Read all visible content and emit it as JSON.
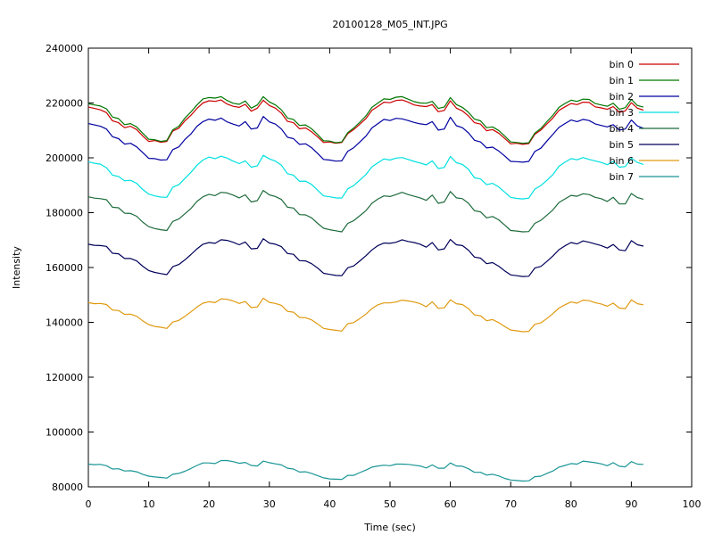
{
  "chart_data": {
    "type": "line",
    "title": "20100128_M05_INT.JPG",
    "xlabel": "Time (sec)",
    "ylabel": "Intensity",
    "xlim": [
      0,
      100
    ],
    "ylim": [
      80000,
      240000
    ],
    "xticks": [
      0,
      10,
      20,
      30,
      40,
      50,
      60,
      70,
      80,
      90,
      100
    ],
    "yticks": [
      80000,
      100000,
      120000,
      140000,
      160000,
      180000,
      200000,
      220000,
      240000
    ],
    "legend_position": "top-right",
    "grid": false,
    "x": [
      0,
      1,
      2,
      3,
      4,
      5,
      6,
      7,
      8,
      9,
      10,
      11,
      12,
      13,
      14,
      15,
      16,
      17,
      18,
      19,
      20,
      21,
      22,
      23,
      24,
      25,
      26,
      27,
      28,
      29,
      30,
      31,
      32,
      33,
      34,
      35,
      36,
      37,
      38,
      39,
      40,
      41,
      42,
      43,
      44,
      45,
      46,
      47,
      48,
      49,
      50,
      51,
      52,
      53,
      54,
      55,
      56,
      57,
      58,
      59,
      60,
      61,
      62,
      63,
      64,
      65,
      66,
      67,
      68,
      69,
      70,
      71,
      72,
      73,
      74,
      75,
      76,
      77,
      78,
      79,
      80,
      81,
      82,
      83,
      84,
      85,
      86,
      87,
      88,
      89,
      90,
      91,
      92
    ],
    "series": [
      {
        "name": "bin 0",
        "color": "#cc0000",
        "values": [
          218500,
          218000,
          217500,
          216500,
          213500,
          212800,
          211000,
          211500,
          210300,
          208000,
          206000,
          206300,
          205700,
          206000,
          209800,
          210800,
          213500,
          215500,
          218000,
          220000,
          220800,
          220600,
          221100,
          219600,
          218800,
          218400,
          219500,
          217000,
          218100,
          221000,
          219100,
          218100,
          216300,
          213300,
          212800,
          210600,
          210900,
          209500,
          207600,
          205600,
          205800,
          205300,
          205600,
          208800,
          210300,
          212300,
          214300,
          217300,
          218800,
          220300,
          220100,
          220900,
          221100,
          220300,
          219300,
          218900,
          218700,
          219400,
          216800,
          217300,
          220800,
          218100,
          217100,
          215300,
          212800,
          212300,
          209900,
          210300,
          209000,
          207100,
          205100,
          205300,
          204900,
          205200,
          208600,
          210100,
          212400,
          214500,
          217300,
          218600,
          219800,
          219400,
          220300,
          220200,
          218600,
          218200,
          217700,
          218700,
          216600,
          217100,
          220100,
          218100,
          217400
        ]
      },
      {
        "name": "bin 1",
        "color": "#007700",
        "values": [
          219700,
          219300,
          218900,
          217900,
          214900,
          214300,
          212100,
          212500,
          211300,
          209000,
          206800,
          206600,
          206000,
          206300,
          210200,
          211500,
          214500,
          216700,
          219300,
          221500,
          222000,
          221800,
          222300,
          220900,
          219900,
          219500,
          220700,
          218100,
          219300,
          222300,
          220400,
          219300,
          217500,
          214500,
          214000,
          211800,
          212000,
          210600,
          208500,
          206200,
          206100,
          205500,
          205800,
          209200,
          210900,
          213000,
          215300,
          218400,
          220000,
          221500,
          221300,
          222100,
          222300,
          221400,
          220500,
          220000,
          219900,
          220600,
          218000,
          218500,
          222000,
          219400,
          218400,
          216600,
          214100,
          213500,
          211000,
          211300,
          210000,
          208000,
          205800,
          205600,
          205300,
          205500,
          209000,
          210700,
          213200,
          215500,
          218400,
          219800,
          221000,
          220600,
          221400,
          221300,
          219800,
          219300,
          218800,
          219900,
          217700,
          218300,
          221300,
          219100,
          218500
        ]
      },
      {
        "name": "bin 2",
        "color": "#0000a0",
        "values": [
          212500,
          212000,
          211500,
          210500,
          207700,
          207000,
          205000,
          205300,
          204000,
          202000,
          199800,
          199700,
          199200,
          199300,
          203000,
          204000,
          206700,
          208700,
          211500,
          213200,
          214100,
          213700,
          214500,
          213100,
          212300,
          211600,
          213200,
          210500,
          210900,
          215100,
          213100,
          212300,
          210500,
          207500,
          207000,
          204900,
          205100,
          203700,
          201600,
          199400,
          199200,
          198800,
          198900,
          202400,
          203700,
          205800,
          207900,
          210900,
          212500,
          214000,
          213600,
          214400,
          214200,
          213600,
          212900,
          212400,
          212100,
          213200,
          210100,
          210500,
          214800,
          211700,
          211000,
          209100,
          206400,
          205800,
          203600,
          203900,
          202500,
          200700,
          198700,
          198600,
          198400,
          198700,
          202300,
          203500,
          206100,
          208600,
          211100,
          212500,
          213800,
          213200,
          214000,
          213600,
          212400,
          211800,
          211300,
          212100,
          210100,
          210500,
          213800,
          211600,
          210800
        ]
      },
      {
        "name": "bin 3",
        "color": "#00e0e0",
        "values": [
          198500,
          198000,
          197700,
          196400,
          193700,
          193200,
          191600,
          191800,
          190700,
          188500,
          186800,
          186100,
          185700,
          185600,
          189300,
          190200,
          192500,
          194700,
          197300,
          199200,
          200300,
          199700,
          200600,
          199900,
          198800,
          197900,
          198900,
          196600,
          197100,
          200900,
          199600,
          198800,
          197300,
          194200,
          193700,
          191400,
          191500,
          190300,
          188200,
          186100,
          185800,
          185400,
          185300,
          188700,
          189900,
          191900,
          193900,
          196700,
          198200,
          199600,
          199200,
          199900,
          200100,
          199400,
          198700,
          198100,
          197400,
          198900,
          196100,
          196500,
          200500,
          198200,
          197600,
          195800,
          192700,
          192300,
          190200,
          190700,
          189400,
          187500,
          185600,
          185200,
          185000,
          185300,
          188600,
          189900,
          191800,
          193900,
          196900,
          198400,
          199700,
          199300,
          200100,
          199400,
          198900,
          198300,
          197500,
          198700,
          196600,
          196800,
          199900,
          198300,
          197600
        ]
      },
      {
        "name": "bin 4",
        "color": "#1e6b3c",
        "values": [
          185800,
          185300,
          185100,
          184700,
          182000,
          181800,
          179800,
          179700,
          178700,
          176600,
          174900,
          174200,
          173800,
          173500,
          176800,
          177700,
          179600,
          181500,
          184100,
          185800,
          186700,
          186200,
          187400,
          187200,
          186400,
          185400,
          186500,
          183900,
          184400,
          188100,
          186500,
          185900,
          184800,
          182000,
          181700,
          179300,
          179200,
          178100,
          176100,
          174300,
          173800,
          173400,
          173000,
          176100,
          177100,
          178900,
          180700,
          183400,
          185000,
          186100,
          185900,
          186600,
          187400,
          186600,
          186000,
          185400,
          184500,
          186400,
          183400,
          183900,
          187700,
          185400,
          185100,
          183400,
          180700,
          180300,
          178100,
          178600,
          177400,
          175500,
          173500,
          173300,
          173000,
          173100,
          176100,
          177200,
          179100,
          181000,
          183700,
          185000,
          186300,
          186000,
          186900,
          186600,
          185600,
          185100,
          184100,
          185600,
          183200,
          183200,
          187000,
          185500,
          184900
        ]
      },
      {
        "name": "bin 5",
        "color": "#00005a",
        "values": [
          168500,
          168100,
          168000,
          167700,
          165200,
          165000,
          163300,
          163300,
          162400,
          160500,
          158900,
          158200,
          157800,
          157400,
          160300,
          161100,
          162800,
          164700,
          166800,
          168500,
          169100,
          168800,
          170100,
          169900,
          169200,
          168300,
          169300,
          166800,
          167000,
          170500,
          168900,
          168500,
          167600,
          165100,
          164800,
          162500,
          162400,
          161400,
          159800,
          157900,
          157500,
          157100,
          157000,
          159900,
          160600,
          162400,
          164300,
          166400,
          168000,
          168900,
          168800,
          169200,
          170100,
          169500,
          169100,
          168500,
          167400,
          169100,
          166400,
          166800,
          170200,
          168300,
          168000,
          166300,
          163800,
          163400,
          161400,
          161800,
          160500,
          158800,
          157300,
          157000,
          156700,
          156800,
          159800,
          160400,
          162200,
          164200,
          166500,
          167900,
          169100,
          168600,
          169700,
          169200,
          168600,
          168000,
          167100,
          168400,
          166400,
          166100,
          169800,
          168300,
          167800
        ]
      },
      {
        "name": "bin 6",
        "color": "#e09a10",
        "values": [
          147200,
          146800,
          146900,
          146500,
          144500,
          144300,
          142900,
          143000,
          142200,
          140600,
          139200,
          138500,
          138200,
          137800,
          140100,
          140700,
          142200,
          143800,
          145600,
          147000,
          147500,
          147200,
          148600,
          148400,
          147800,
          146900,
          147600,
          145400,
          145600,
          148800,
          147300,
          146900,
          146200,
          144000,
          143700,
          141800,
          141700,
          140900,
          139400,
          137800,
          137400,
          137100,
          136800,
          139500,
          139900,
          141400,
          143000,
          145000,
          146400,
          147100,
          147100,
          147400,
          148100,
          147800,
          147400,
          146800,
          145700,
          147500,
          145100,
          145300,
          148200,
          146800,
          146500,
          145000,
          142700,
          142400,
          140600,
          141000,
          139900,
          138500,
          137200,
          136900,
          136600,
          136700,
          139300,
          139800,
          141400,
          143200,
          145200,
          146400,
          147400,
          147000,
          148100,
          147900,
          147200,
          146700,
          145900,
          147000,
          145200,
          145000,
          148200,
          146800,
          146400
        ]
      },
      {
        "name": "bin 7",
        "color": "#1a9595",
        "values": [
          88300,
          88100,
          88200,
          87700,
          86500,
          86600,
          85800,
          85900,
          85500,
          84600,
          83900,
          83600,
          83400,
          83200,
          84600,
          84900,
          85700,
          86700,
          87800,
          88700,
          88700,
          88500,
          89600,
          89600,
          89200,
          88600,
          88900,
          87800,
          87600,
          89400,
          88800,
          88400,
          88000,
          86800,
          86500,
          85400,
          85500,
          84900,
          84100,
          83300,
          82900,
          82800,
          82700,
          84200,
          84200,
          85200,
          86100,
          87200,
          87600,
          87900,
          87700,
          88300,
          88300,
          88200,
          87900,
          87600,
          86900,
          88000,
          86800,
          86800,
          88700,
          87600,
          87500,
          86600,
          85300,
          85300,
          84300,
          84600,
          84000,
          83100,
          82500,
          82300,
          82100,
          82200,
          83700,
          83900,
          84900,
          85800,
          87200,
          87800,
          88500,
          88300,
          89400,
          89100,
          88800,
          88400,
          87700,
          88800,
          87500,
          87300,
          89200,
          88300,
          88200
        ]
      }
    ]
  }
}
